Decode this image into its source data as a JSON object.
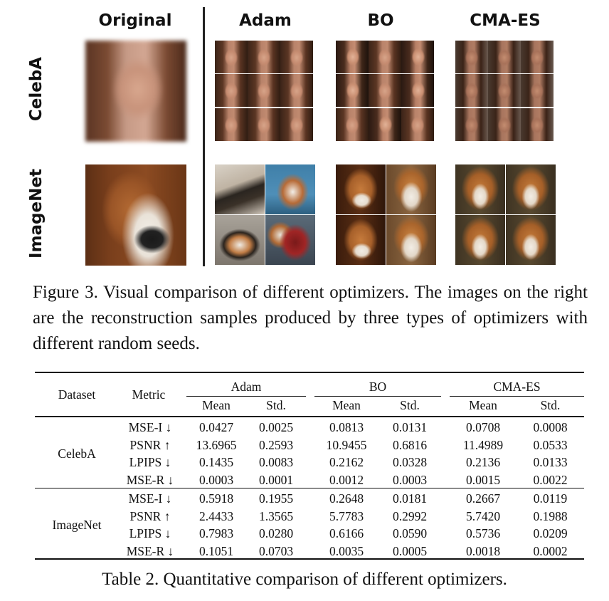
{
  "figure": {
    "column_headers": [
      "Original",
      "Adam",
      "BO",
      "CMA-ES"
    ],
    "row_labels": [
      "CelebA",
      "ImageNet"
    ],
    "caption": "Figure 3. Visual comparison of different optimizers. The images on the right are the reconstruction samples produced by three types of optimizers with different random seeds."
  },
  "table": {
    "headers": {
      "dataset": "Dataset",
      "metric": "Metric",
      "groups": [
        "Adam",
        "BO",
        "CMA-ES"
      ],
      "sub": [
        "Mean",
        "Std.",
        "Mean",
        "Std.",
        "Mean",
        "Std."
      ]
    },
    "sections": [
      {
        "dataset": "CelebA",
        "rows": [
          {
            "metric": "MSE-I ↓",
            "values": [
              "0.0427",
              "0.0025",
              "0.0813",
              "0.0131",
              "0.0708",
              "0.0008"
            ],
            "bold": [
              true,
              false,
              false,
              false,
              false,
              true
            ]
          },
          {
            "metric": "PSNR ↑",
            "values": [
              "13.6965",
              "0.2593",
              "10.9455",
              "0.6816",
              "11.4989",
              "0.0533"
            ],
            "bold": [
              true,
              false,
              false,
              false,
              false,
              true
            ]
          },
          {
            "metric": "LPIPS ↓",
            "values": [
              "0.1435",
              "0.0083",
              "0.2162",
              "0.0328",
              "0.2136",
              "0.0133"
            ],
            "bold": [
              true,
              true,
              false,
              false,
              false,
              false
            ]
          },
          {
            "metric": "MSE-R ↓",
            "values": [
              "0.0003",
              "0.0001",
              "0.0012",
              "0.0003",
              "0.0015",
              "0.0022"
            ],
            "bold": [
              true,
              true,
              false,
              false,
              false,
              false
            ]
          }
        ]
      },
      {
        "dataset": "ImageNet",
        "rows": [
          {
            "metric": "MSE-I ↓",
            "values": [
              "0.5918",
              "0.1955",
              "0.2648",
              "0.0181",
              "0.2667",
              "0.0119"
            ],
            "bold": [
              false,
              false,
              true,
              false,
              false,
              true
            ]
          },
          {
            "metric": "PSNR ↑",
            "values": [
              "2.4433",
              "1.3565",
              "5.7783",
              "0.2992",
              "5.7420",
              "0.1988"
            ],
            "bold": [
              false,
              false,
              true,
              false,
              false,
              true
            ]
          },
          {
            "metric": "LPIPS ↓",
            "values": [
              "0.7983",
              "0.0280",
              "0.6166",
              "0.0590",
              "0.5736",
              "0.0209"
            ],
            "bold": [
              false,
              false,
              false,
              false,
              true,
              true
            ]
          },
          {
            "metric": "MSE-R ↓",
            "values": [
              "0.1051",
              "0.0703",
              "0.0035",
              "0.0005",
              "0.0018",
              "0.0002"
            ],
            "bold": [
              false,
              false,
              false,
              false,
              true,
              true
            ]
          }
        ]
      }
    ],
    "caption": "Table 2. Quantitative comparison of different optimizers."
  }
}
